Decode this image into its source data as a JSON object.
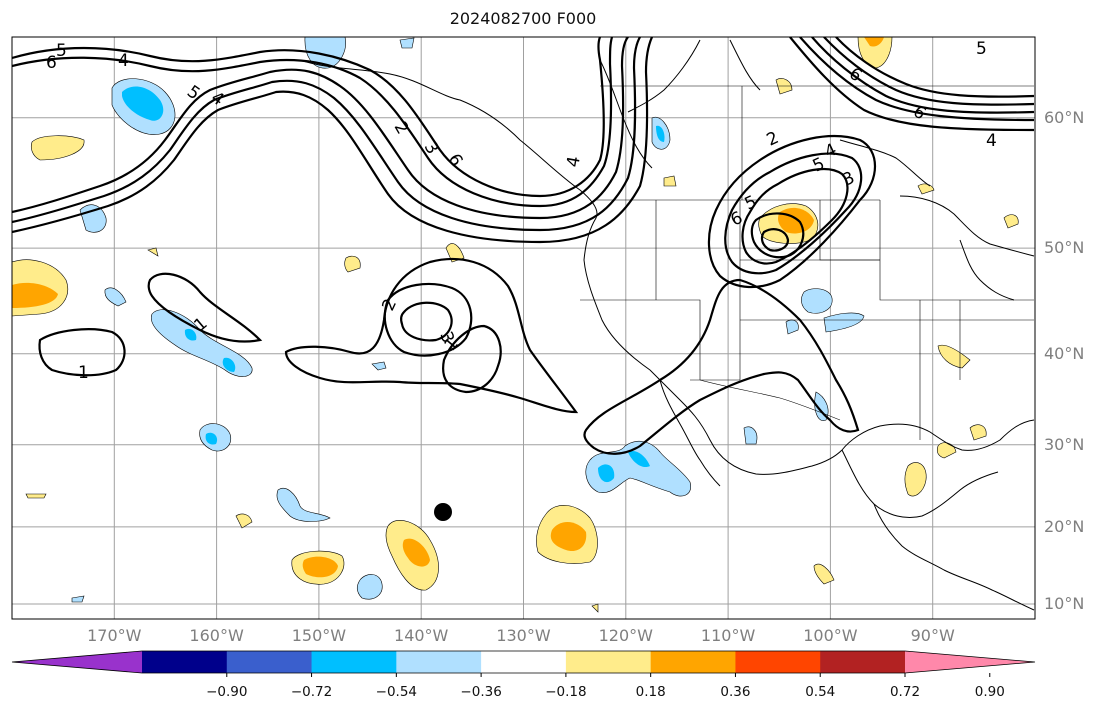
{
  "title": "2024082700 F000",
  "map": {
    "lat_ticks": [
      {
        "label": "60°N",
        "lat": 60
      },
      {
        "label": "50°N",
        "lat": 50
      },
      {
        "label": "40°N",
        "lat": 40
      },
      {
        "label": "30°N",
        "lat": 30
      },
      {
        "label": "20°N",
        "lat": 20
      },
      {
        "label": "10°N",
        "lat": 10
      }
    ],
    "lon_ticks": [
      {
        "label": "170°W",
        "lon": -170
      },
      {
        "label": "160°W",
        "lon": -160
      },
      {
        "label": "150°W",
        "lon": -150
      },
      {
        "label": "140°W",
        "lon": -140
      },
      {
        "label": "130°W",
        "lon": -130
      },
      {
        "label": "120°W",
        "lon": -120
      },
      {
        "label": "110°W",
        "lon": -110
      },
      {
        "label": "100°W",
        "lon": -100
      },
      {
        "label": "90°W",
        "lon": -90
      }
    ],
    "extent": {
      "lon_min": -180,
      "lon_max": -80,
      "lat_min": 8,
      "lat_max": 65
    },
    "grid": true,
    "contour_labels": [
      "5",
      "6",
      "4",
      "5",
      "4",
      "2",
      "3",
      "6",
      "4",
      "2",
      "5",
      "6",
      "5",
      "4",
      "3",
      "2",
      "3",
      "1",
      "1",
      "1",
      "6",
      "6",
      "5",
      "4"
    ]
  },
  "colorbar": {
    "colors": [
      "#9932cc",
      "#00008b",
      "#3a5fcd",
      "#00bfff",
      "#b0e0ff",
      "#ffffff",
      "#ffec8b",
      "#ffa500",
      "#ff4500",
      "#b22222",
      "#ff88aa"
    ],
    "ticks": [
      "−0.90",
      "−0.72",
      "−0.54",
      "−0.36",
      "−0.18",
      "0.18",
      "0.36",
      "0.54",
      "0.72",
      "0.90"
    ],
    "extend": "both"
  }
}
